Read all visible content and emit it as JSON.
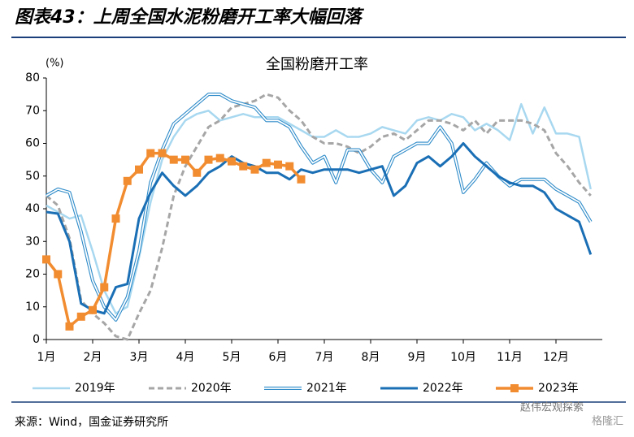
{
  "title": "图表43：上周全国水泥粉磨开工率大幅回落",
  "source": "来源：Wind，国金证券研究所",
  "watermark": "赵伟宏观探索",
  "watermark2": "格隆汇",
  "chart_data": {
    "type": "line",
    "title": "全国粉磨开工率",
    "y_unit": "(%)",
    "x": [
      1,
      1.25,
      1.5,
      1.75,
      2,
      2.25,
      2.5,
      2.75,
      3,
      3.25,
      3.5,
      3.75,
      4,
      4.25,
      4.5,
      4.75,
      5,
      5.25,
      5.5,
      5.75,
      6,
      6.25,
      6.5,
      6.75,
      7,
      7.25,
      7.5,
      7.75,
      8,
      8.25,
      8.5,
      8.75,
      9,
      9.25,
      9.5,
      9.75,
      10,
      10.25,
      10.5,
      10.75,
      11,
      11.25,
      11.5,
      11.75,
      12,
      12.25,
      12.5,
      12.75
    ],
    "xlim": [
      1,
      13
    ],
    "xticks": [
      {
        "value": 1,
        "label": "1月"
      },
      {
        "value": 2,
        "label": "2月"
      },
      {
        "value": 3,
        "label": "3月"
      },
      {
        "value": 4,
        "label": "4月"
      },
      {
        "value": 5,
        "label": "5月"
      },
      {
        "value": 6,
        "label": "6月"
      },
      {
        "value": 7,
        "label": "7月"
      },
      {
        "value": 8,
        "label": "8月"
      },
      {
        "value": 9,
        "label": "9月"
      },
      {
        "value": 10,
        "label": "10月"
      },
      {
        "value": 11,
        "label": "11月"
      },
      {
        "value": 12,
        "label": "12月"
      }
    ],
    "ylim": [
      0,
      80
    ],
    "yticks": [
      0,
      10,
      20,
      30,
      40,
      50,
      60,
      70,
      80
    ],
    "series": [
      {
        "name": "2019年",
        "color": "#a8d8f0",
        "style": "solid",
        "width": 2.5,
        "values": [
          41,
          39,
          37,
          38,
          27,
          15,
          8,
          10,
          25,
          42,
          55,
          62,
          67,
          69,
          70,
          67,
          68,
          69,
          68,
          68,
          68,
          66,
          64,
          62,
          62,
          64,
          62,
          62,
          63,
          65,
          64,
          63,
          67,
          68,
          67,
          69,
          68,
          64,
          66,
          64,
          61,
          72,
          63,
          71,
          63,
          63,
          62,
          46
        ]
      },
      {
        "name": "2020年",
        "color": "#a6a6a6",
        "style": "dashed",
        "width": 3,
        "values": [
          44,
          41,
          31,
          12,
          8,
          5,
          1,
          0,
          8,
          15,
          28,
          44,
          53,
          59,
          65,
          67,
          71,
          72,
          73,
          75,
          74,
          70,
          67,
          62,
          60,
          60,
          59,
          57,
          59,
          62,
          63,
          61,
          64,
          67,
          67,
          66,
          64,
          67,
          63,
          67,
          67,
          67,
          66,
          64,
          57,
          53,
          48,
          44
        ]
      },
      {
        "name": "2021年",
        "color": "#2e8bc9",
        "style": "double",
        "width": 4,
        "values": [
          44,
          46,
          45,
          33,
          18,
          10,
          6,
          13,
          27,
          48,
          58,
          66,
          69,
          72,
          75,
          75,
          73,
          72,
          71,
          67,
          67,
          65,
          59,
          54,
          56,
          48,
          58,
          58,
          52,
          48,
          56,
          58,
          60,
          60,
          65,
          60,
          45,
          49,
          54,
          50,
          47,
          49,
          49,
          49,
          46,
          44,
          42,
          36
        ]
      },
      {
        "name": "2022年",
        "color": "#1a6fb5",
        "style": "solid",
        "width": 3,
        "values": [
          39,
          38.5,
          30,
          11,
          9,
          8,
          16,
          17,
          37,
          45,
          51,
          47,
          44,
          47,
          51,
          53,
          56,
          54,
          53,
          51,
          51,
          49,
          52,
          51,
          52,
          52,
          52,
          51,
          52,
          53,
          44,
          47,
          54,
          56,
          53,
          56,
          60,
          56,
          53,
          50,
          48,
          47,
          47,
          45,
          40,
          38,
          36,
          26
        ]
      },
      {
        "name": "2023年",
        "color": "#f28c30",
        "style": "marker",
        "width": 3.5,
        "values": [
          24.5,
          20,
          4,
          7,
          9,
          16,
          37,
          48.5,
          52,
          57,
          57,
          55,
          55,
          51,
          55,
          55.5,
          54.5,
          53,
          52,
          54,
          53.5,
          53,
          49,
          null,
          null,
          null,
          null,
          null,
          null,
          null,
          null,
          null,
          null,
          null,
          null,
          null,
          null,
          null,
          null,
          null,
          null,
          null,
          null,
          null,
          null,
          null,
          null,
          null
        ]
      }
    ]
  }
}
